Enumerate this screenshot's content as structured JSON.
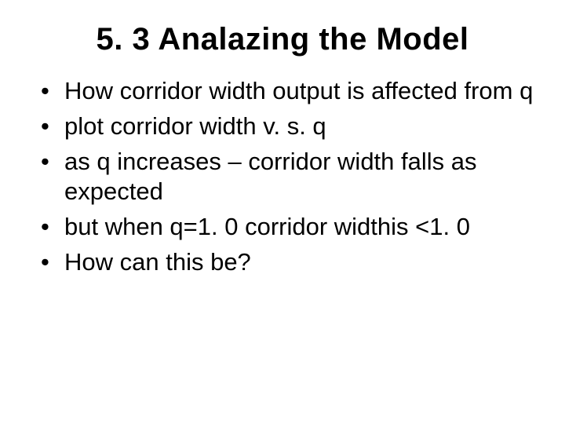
{
  "title": "5. 3 Analazing the Model",
  "bullets": [
    "How corridor width output is affected from q",
    "plot corridor width v. s. q",
    "as q increases – corridor width falls as expected",
    "but when q=1. 0 corridor widthis <1. 0",
    "How can this be?"
  ]
}
